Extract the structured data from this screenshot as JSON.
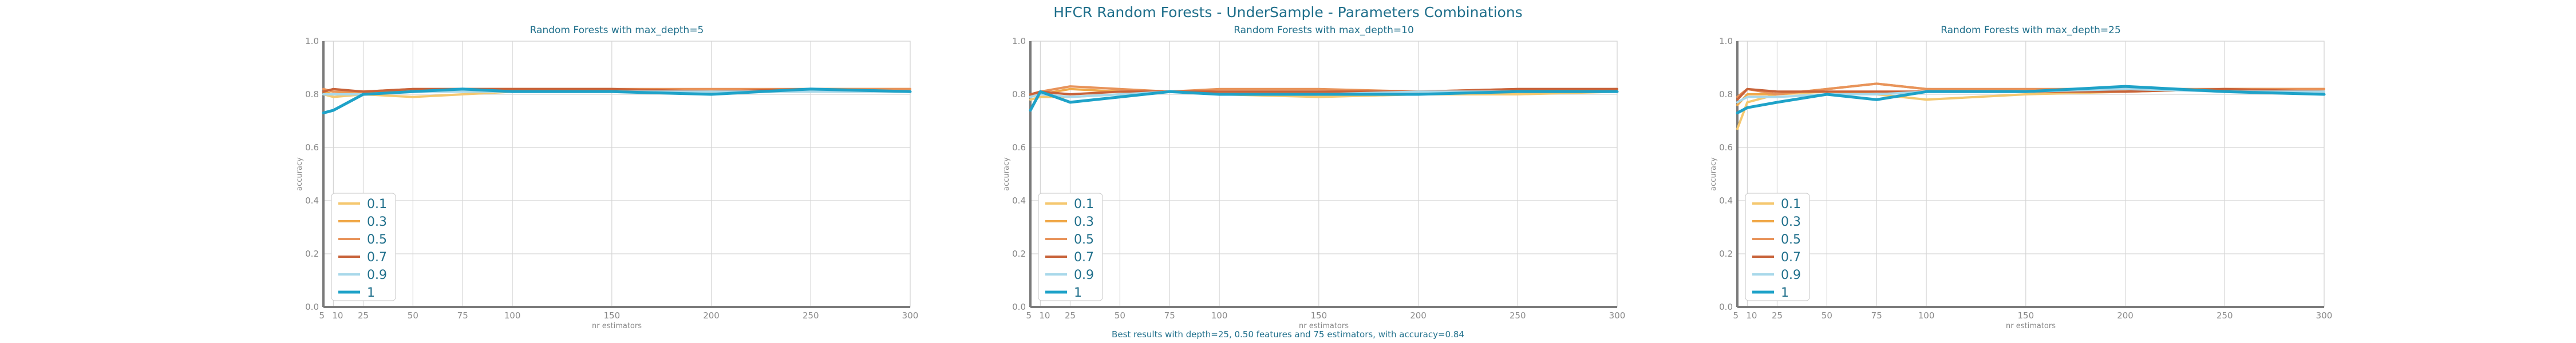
{
  "figure": {
    "title": "HFCR Random Forests - UnderSample - Parameters Combinations",
    "footnote": "Best results with depth=25, 0.50 features and 75 estimators, with accuracy=0.84"
  },
  "legend_labels": [
    "0.1",
    "0.3",
    "0.5",
    "0.7",
    "0.9",
    "1"
  ],
  "series_colors": [
    "#f5c870",
    "#f0a848",
    "#e8935a",
    "#c8633a",
    "#a8d8ea",
    "#1ea2c8"
  ],
  "chart_data": [
    {
      "type": "line",
      "title": "Random Forests with max_depth=5",
      "xlabel": "nr estimators",
      "ylabel": "accuracy",
      "x": [
        5,
        10,
        25,
        50,
        75,
        100,
        150,
        200,
        250,
        300
      ],
      "x_tick_labels": [
        "5",
        "10",
        "25",
        "50",
        "75",
        "100",
        "150",
        "200",
        "250",
        "300"
      ],
      "xlim": [
        5,
        300
      ],
      "ylim": [
        0.0,
        1.0
      ],
      "y_ticks": [
        "0.0",
        "0.2",
        "0.4",
        "0.6",
        "0.8",
        "1.0"
      ],
      "grid": true,
      "legend_position": "lower-left",
      "series": [
        {
          "name": "0.1",
          "values": [
            0.8,
            0.79,
            0.8,
            0.79,
            0.8,
            0.81,
            0.81,
            0.81,
            0.81,
            0.81
          ]
        },
        {
          "name": "0.3",
          "values": [
            0.81,
            0.8,
            0.81,
            0.81,
            0.82,
            0.82,
            0.82,
            0.81,
            0.82,
            0.82
          ]
        },
        {
          "name": "0.5",
          "values": [
            0.82,
            0.81,
            0.81,
            0.82,
            0.82,
            0.82,
            0.82,
            0.82,
            0.82,
            0.82
          ]
        },
        {
          "name": "0.7",
          "values": [
            0.81,
            0.82,
            0.81,
            0.82,
            0.82,
            0.82,
            0.82,
            0.81,
            0.82,
            0.81
          ]
        },
        {
          "name": "0.9",
          "values": [
            0.8,
            0.8,
            0.8,
            0.81,
            0.81,
            0.81,
            0.81,
            0.81,
            0.81,
            0.81
          ]
        },
        {
          "name": "1",
          "values": [
            0.73,
            0.74,
            0.8,
            0.81,
            0.82,
            0.81,
            0.81,
            0.8,
            0.82,
            0.81
          ]
        }
      ]
    },
    {
      "type": "line",
      "title": "Random Forests with max_depth=10",
      "xlabel": "nr estimators",
      "ylabel": "accuracy",
      "x": [
        5,
        10,
        25,
        50,
        75,
        100,
        150,
        200,
        250,
        300
      ],
      "x_tick_labels": [
        "5",
        "10",
        "25",
        "50",
        "75",
        "100",
        "150",
        "200",
        "250",
        "300"
      ],
      "xlim": [
        5,
        300
      ],
      "ylim": [
        0.0,
        1.0
      ],
      "y_ticks": [
        "0.0",
        "0.2",
        "0.4",
        "0.6",
        "0.8",
        "1.0"
      ],
      "grid": true,
      "legend_position": "lower-left",
      "series": [
        {
          "name": "0.1",
          "values": [
            0.78,
            0.79,
            0.79,
            0.8,
            0.81,
            0.8,
            0.79,
            0.8,
            0.8,
            0.81
          ]
        },
        {
          "name": "0.3",
          "values": [
            0.8,
            0.8,
            0.82,
            0.81,
            0.81,
            0.81,
            0.81,
            0.81,
            0.81,
            0.82
          ]
        },
        {
          "name": "0.5",
          "values": [
            0.79,
            0.81,
            0.83,
            0.82,
            0.81,
            0.82,
            0.82,
            0.81,
            0.82,
            0.82
          ]
        },
        {
          "name": "0.7",
          "values": [
            0.8,
            0.81,
            0.8,
            0.81,
            0.81,
            0.81,
            0.81,
            0.81,
            0.82,
            0.82
          ]
        },
        {
          "name": "0.9",
          "values": [
            0.79,
            0.8,
            0.79,
            0.8,
            0.81,
            0.8,
            0.8,
            0.81,
            0.81,
            0.81
          ]
        },
        {
          "name": "1",
          "values": [
            0.74,
            0.81,
            0.77,
            0.79,
            0.81,
            0.8,
            0.8,
            0.8,
            0.81,
            0.81
          ]
        }
      ]
    },
    {
      "type": "line",
      "title": "Random Forests with max_depth=25",
      "xlabel": "nr estimators",
      "ylabel": "accuracy",
      "x": [
        5,
        10,
        25,
        50,
        75,
        100,
        150,
        200,
        250,
        300
      ],
      "x_tick_labels": [
        "5",
        "10",
        "25",
        "50",
        "75",
        "100",
        "150",
        "200",
        "250",
        "300"
      ],
      "xlim": [
        5,
        300
      ],
      "ylim": [
        0.0,
        1.0
      ],
      "y_ticks": [
        "0.0",
        "0.2",
        "0.4",
        "0.6",
        "0.8",
        "1.0"
      ],
      "grid": true,
      "legend_position": "lower-left",
      "series": [
        {
          "name": "0.1",
          "values": [
            0.67,
            0.77,
            0.8,
            0.81,
            0.8,
            0.78,
            0.8,
            0.81,
            0.82,
            0.82
          ]
        },
        {
          "name": "0.3",
          "values": [
            0.76,
            0.8,
            0.8,
            0.82,
            0.84,
            0.82,
            0.81,
            0.81,
            0.82,
            0.82
          ]
        },
        {
          "name": "0.5",
          "values": [
            0.79,
            0.82,
            0.8,
            0.82,
            0.84,
            0.82,
            0.82,
            0.82,
            0.82,
            0.82
          ]
        },
        {
          "name": "0.7",
          "values": [
            0.78,
            0.82,
            0.81,
            0.81,
            0.81,
            0.81,
            0.81,
            0.81,
            0.82,
            0.81
          ]
        },
        {
          "name": "0.9",
          "values": [
            0.77,
            0.79,
            0.79,
            0.8,
            0.8,
            0.81,
            0.81,
            0.82,
            0.81,
            0.81
          ]
        },
        {
          "name": "1",
          "values": [
            0.73,
            0.75,
            0.77,
            0.8,
            0.78,
            0.81,
            0.81,
            0.83,
            0.81,
            0.8
          ]
        }
      ]
    }
  ]
}
